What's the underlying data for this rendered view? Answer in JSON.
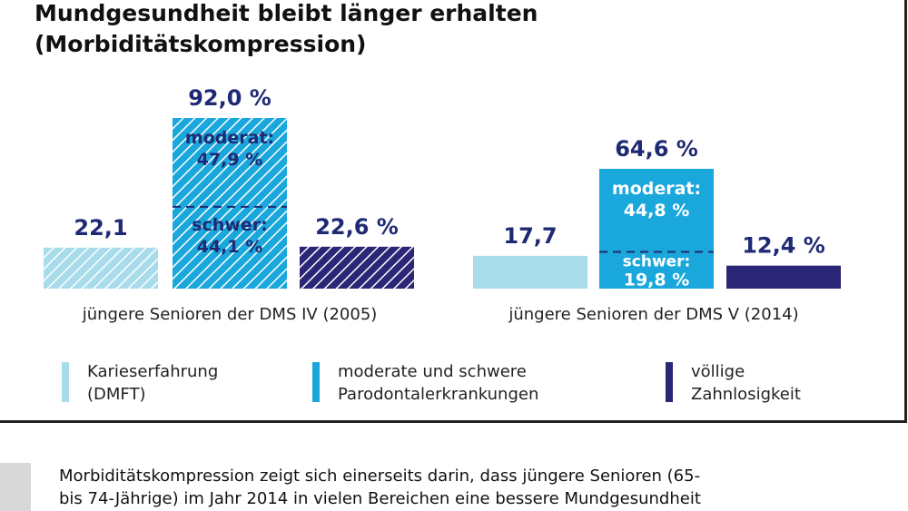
{
  "title_line1": "Mundgesundheit bleibt länger erhalten",
  "title_line2": "(Morbiditätskompression)",
  "chart_data": {
    "type": "bar",
    "categories": [
      "jüngere Senioren der DMS IV (2005)",
      "jüngere Senioren der DMS V (2014)"
    ],
    "series": [
      {
        "name": "Karieserfahrung (DMFT)",
        "values": [
          22.1,
          17.7
        ],
        "labels": [
          "22,1",
          "17,7"
        ]
      },
      {
        "name": "moderate und schwere Parodontalerkrankungen",
        "values": [
          92.0,
          64.6
        ],
        "labels": [
          "92,0 %",
          "64,6 %"
        ],
        "breakdown": [
          {
            "moderat_label": "moderat:",
            "moderat_value": "47,9 %",
            "schwer_label": "schwer:",
            "schwer_value": "44,1 %",
            "moderat": 47.9,
            "schwer": 44.1
          },
          {
            "moderat_label": "moderat:",
            "moderat_value": "44,8 %",
            "schwer_label": "schwer:",
            "schwer_value": "19,8 %",
            "moderat": 44.8,
            "schwer": 19.8
          }
        ]
      },
      {
        "name": "völlige Zahnlosigkeit",
        "values": [
          22.6,
          12.4
        ],
        "labels": [
          "22,6 %",
          "12,4 %"
        ]
      }
    ],
    "hatched_group": 0
  },
  "legend": [
    {
      "line1": "Karieserfahrung",
      "line2": "(DMFT)",
      "color": "#a8dcea"
    },
    {
      "line1": "moderate und schwere",
      "line2": "Parodontalerkrankungen",
      "color": "#1aa7dc"
    },
    {
      "line1": "völlige",
      "line2": "Zahnlosigkeit",
      "color": "#2b2675"
    }
  ],
  "colors": {
    "caries": "#a8dcea",
    "paro": "#1aa7dc",
    "zahnlos": "#2b2675",
    "value_text": "#1f2a74"
  },
  "footer_text_line1": "Morbiditätskompression zeigt sich einerseits darin, dass jüngere Senioren (65-",
  "footer_text_line2": "bis 74-Jährige) im Jahr 2014 in vielen Bereichen eine bessere Mundgesundheit"
}
